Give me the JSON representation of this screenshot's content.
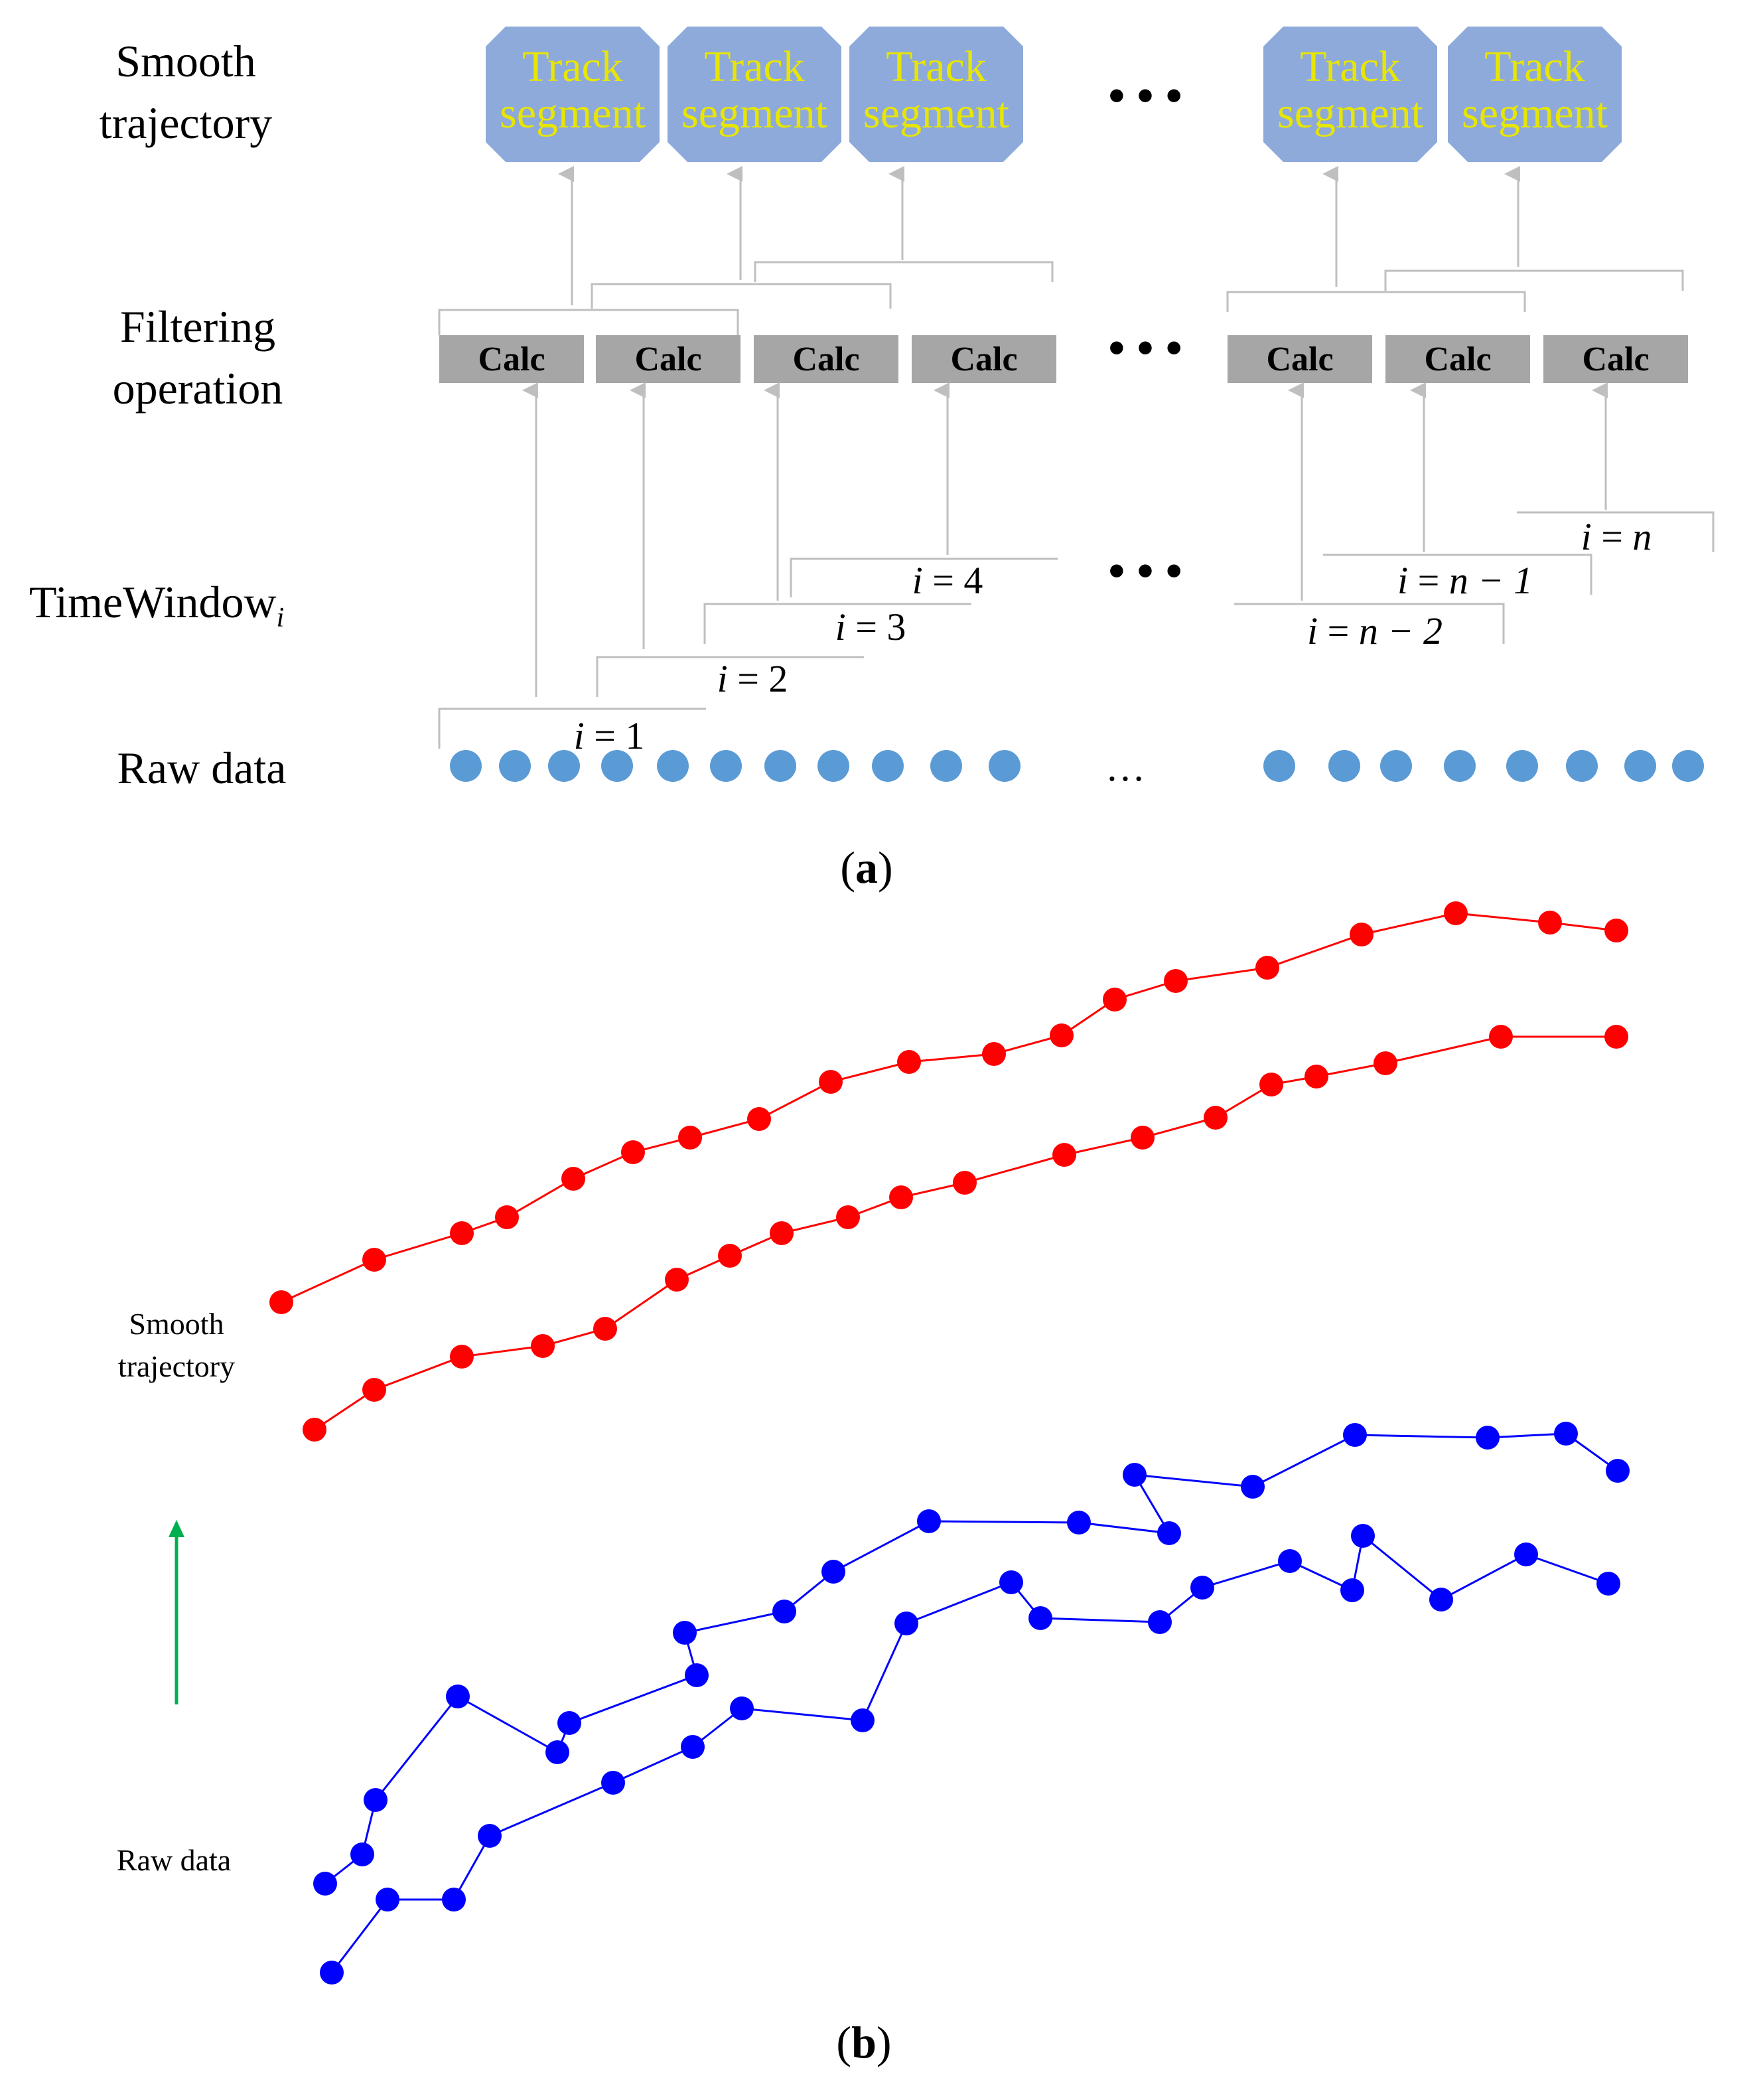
{
  "panel_a": {
    "caption_open": "(",
    "caption_letter": "a",
    "caption_close": ")",
    "row_labels": {
      "smooth_line1": "Smooth",
      "smooth_line2": "trajectory",
      "filter_line1": "Filtering",
      "filter_line2": "operation",
      "timewindow": "TimeWindow",
      "timewindow_sub": "i",
      "raw": "Raw data"
    },
    "track_segment": {
      "line1": "Track",
      "line2": "segment",
      "count_left": 3,
      "count_right": 2
    },
    "calc_label": "Calc",
    "ellipsis": "• • •",
    "raw_ellipsis": "…",
    "windows": [
      {
        "i": "i",
        "eq": " = ",
        "n": "1"
      },
      {
        "i": "i",
        "eq": " = ",
        "n": "2"
      },
      {
        "i": "i",
        "eq": " = ",
        "n": "3"
      },
      {
        "i": "i",
        "eq": " = ",
        "n": "4"
      },
      {
        "i": "i",
        "eq": " = ",
        "n": "n − 2"
      },
      {
        "i": "i",
        "eq": " = ",
        "n": "n − 1"
      },
      {
        "i": "i",
        "eq": " = ",
        "n": "n"
      }
    ]
  },
  "panel_b": {
    "caption_open": "(",
    "caption_letter": "b",
    "caption_close": ")",
    "smooth_line1": "Smooth",
    "smooth_line2": "trajectory",
    "raw_label": "Raw data"
  },
  "colors": {
    "segment_fill": "#8eaadb",
    "segment_text": "#e8e600",
    "calc_fill": "#a6a6a6",
    "raw_dot": "#5b9bd5",
    "smooth_series": "#ff0000",
    "raw_series": "#0000ff",
    "arrow_green": "#00b050",
    "guide_gray": "#bfbfbf"
  }
}
